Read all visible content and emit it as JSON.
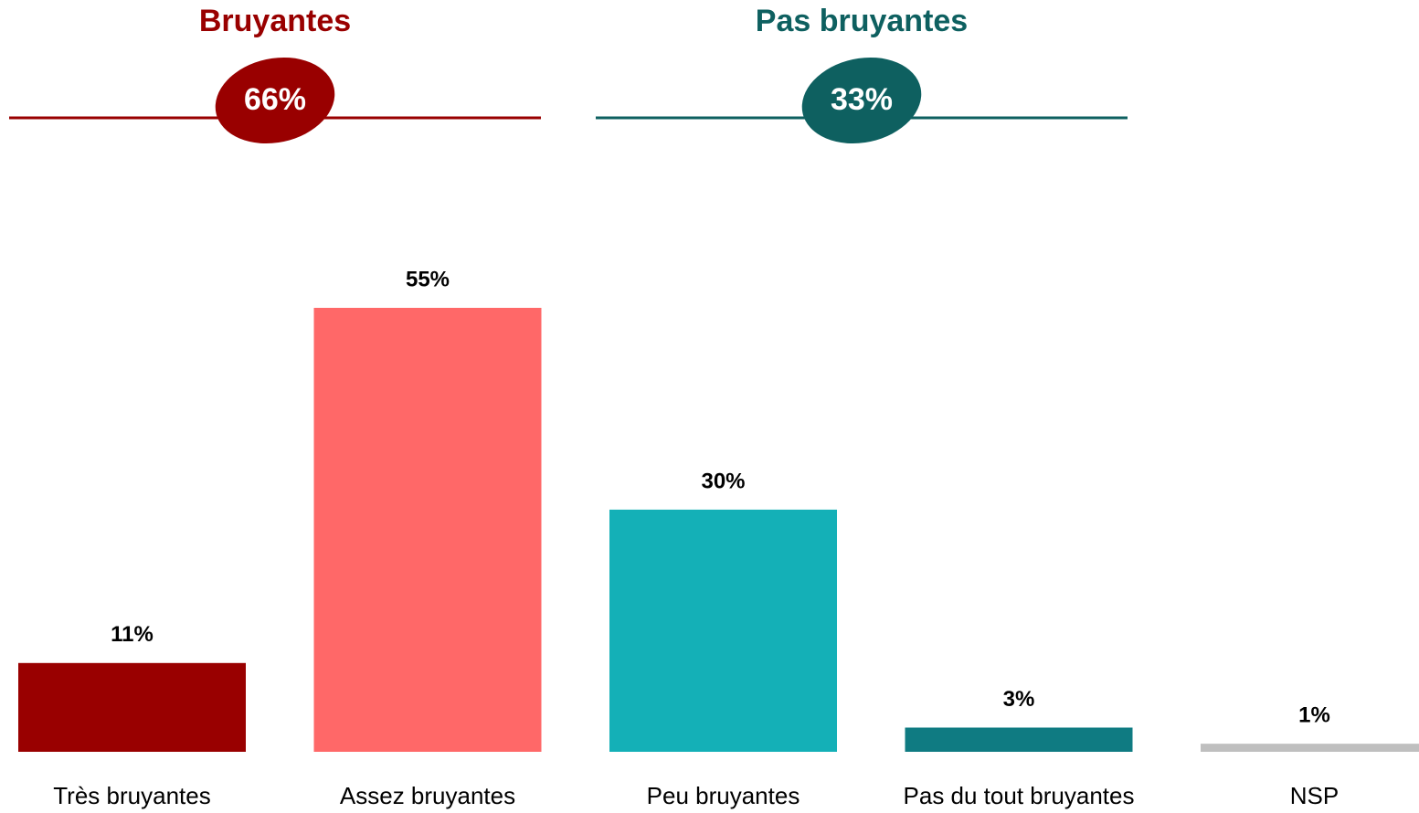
{
  "chart_data": {
    "type": "bar",
    "categories": [
      "Très bruyantes",
      "Assez bruyantes",
      "Peu bruyantes",
      "Pas du tout bruyantes",
      "NSP"
    ],
    "values": [
      11,
      55,
      30,
      3,
      1
    ],
    "value_labels": [
      "11%",
      "55%",
      "30%",
      "3%",
      "1%"
    ],
    "colors": [
      "#990000",
      "#ff6868",
      "#14b0b7",
      "#0f7b82",
      "#bfbfbf"
    ],
    "groups": [
      {
        "name": "Bruyantes",
        "value": 66,
        "value_label": "66%",
        "color": "#990000"
      },
      {
        "name": "Pas bruyantes",
        "value": 33,
        "value_label": "33%",
        "color": "#0e6060"
      }
    ]
  }
}
